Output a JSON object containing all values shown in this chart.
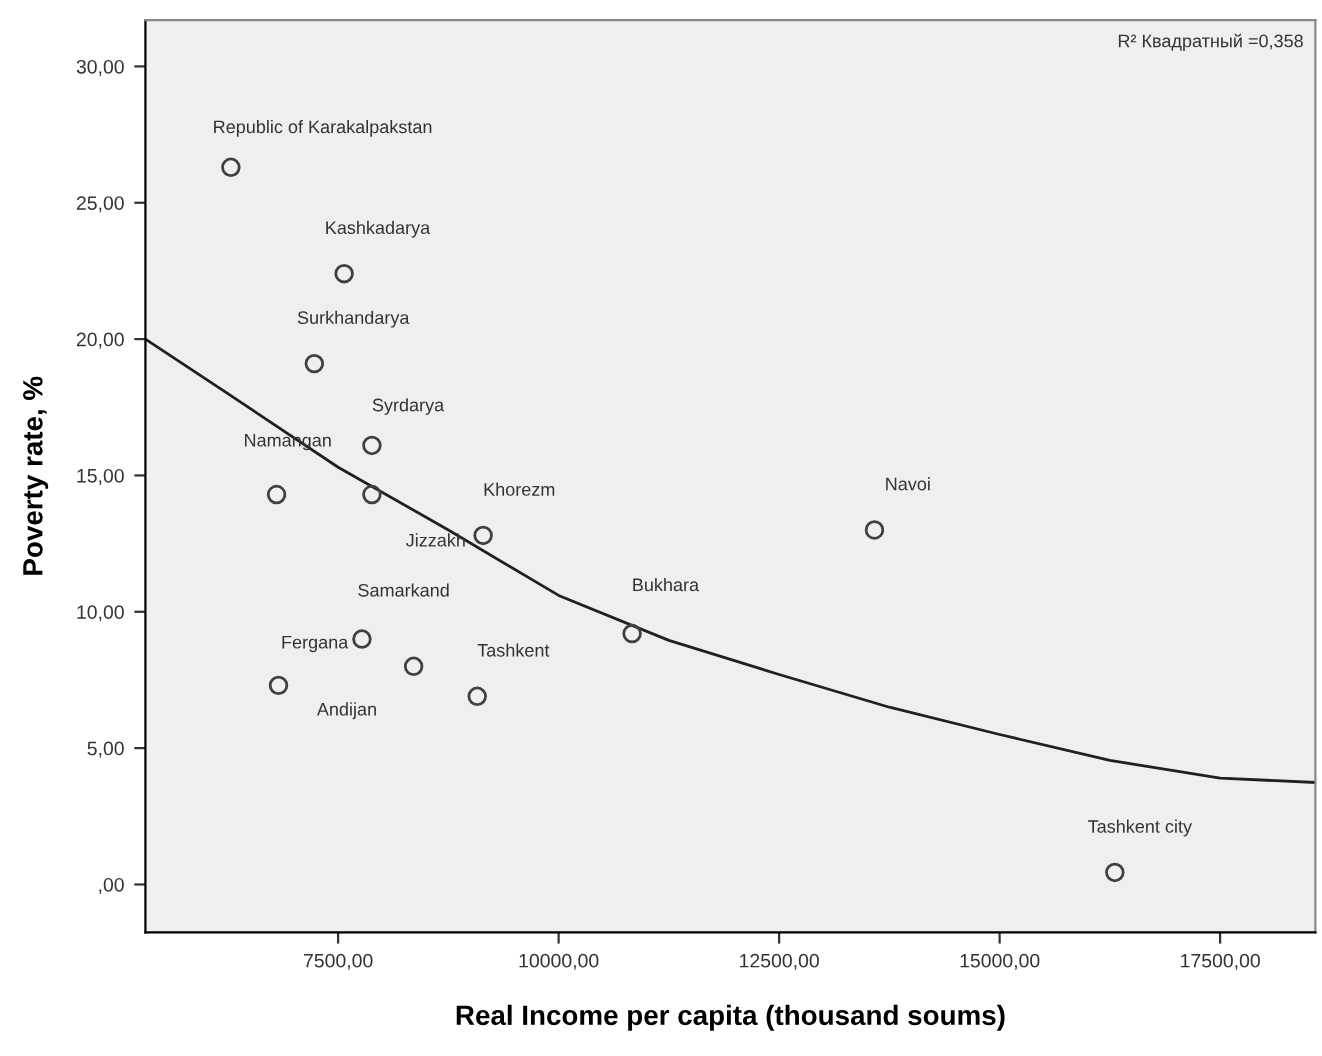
{
  "chart_data": {
    "type": "scatter",
    "xlabel": "Real Income per capita (thousand soums)",
    "ylabel": "Poverty rate, %",
    "marker": "circle",
    "grid": false,
    "legend": false,
    "xlim": [
      5315,
      18580
    ],
    "ylim": [
      -1.76,
      31.7
    ],
    "xticks": [
      {
        "value": 7500,
        "label": "7500,00"
      },
      {
        "value": 10000,
        "label": "10000,00"
      },
      {
        "value": 12500,
        "label": "12500,00"
      },
      {
        "value": 15000,
        "label": "15000,00"
      },
      {
        "value": 17500,
        "label": "17500,00"
      }
    ],
    "yticks": [
      {
        "value": 0,
        "label": ",00"
      },
      {
        "value": 5,
        "label": "5,00"
      },
      {
        "value": 10,
        "label": "10,00"
      },
      {
        "value": 15,
        "label": "15,00"
      },
      {
        "value": 20,
        "label": "20,00"
      },
      {
        "value": 25,
        "label": "25,00"
      },
      {
        "value": 30,
        "label": "30,00"
      }
    ],
    "series": [
      {
        "color": "#404040",
        "x": [
          6284,
          7568,
          7230,
          7883,
          6802,
          7883,
          9144,
          13581,
          10833,
          7770,
          8356,
          6824,
          9077,
          16306
        ],
        "values": [
          26.3,
          22.4,
          19.1,
          16.1,
          14.3,
          14.3,
          12.8,
          13.0,
          9.2,
          9.0,
          8.0,
          7.3,
          6.9,
          0.44
        ]
      },
      {
        "type": "line",
        "color": "#202020",
        "marker": "none",
        "x": [
          5315,
          6250,
          7500,
          8750,
          10000,
          11250,
          12500,
          13750,
          15000,
          16250,
          17500,
          18580
        ],
        "values": [
          20.0,
          18.0,
          15.3,
          13.0,
          10.6,
          8.95,
          7.7,
          6.5,
          5.5,
          4.55,
          3.9,
          3.74
        ]
      }
    ],
    "annotations": [
      {
        "text": "Republic of Karakalpakstan",
        "x": 6284,
        "y": 26.3
      },
      {
        "text": "Kashkadarya",
        "x": 7568,
        "y": 22.4
      },
      {
        "text": "Surkhandarya",
        "x": 7230,
        "y": 19.1
      },
      {
        "text": "Syrdarya",
        "x": 7883,
        "y": 16.1
      },
      {
        "text": "Namangan",
        "x": 6802,
        "y": 14.3
      },
      {
        "text": "Jizzakh",
        "x": 7883,
        "y": 14.3
      },
      {
        "text": "Khorezm",
        "x": 9144,
        "y": 12.8
      },
      {
        "text": "Navoi",
        "x": 13581,
        "y": 13.0
      },
      {
        "text": "Bukhara",
        "x": 10833,
        "y": 9.2
      },
      {
        "text": "Samarkand",
        "x": 7770,
        "y": 9.0
      },
      {
        "text": "Andijan",
        "x": 8356,
        "y": 8.0
      },
      {
        "text": "Fergana",
        "x": 6824,
        "y": 7.3
      },
      {
        "text": "Tashkent",
        "x": 9077,
        "y": 6.9
      },
      {
        "text": "Tashkent city",
        "x": 16306,
        "y": 0.44
      },
      "R² Квадратный =0,358"
    ]
  }
}
